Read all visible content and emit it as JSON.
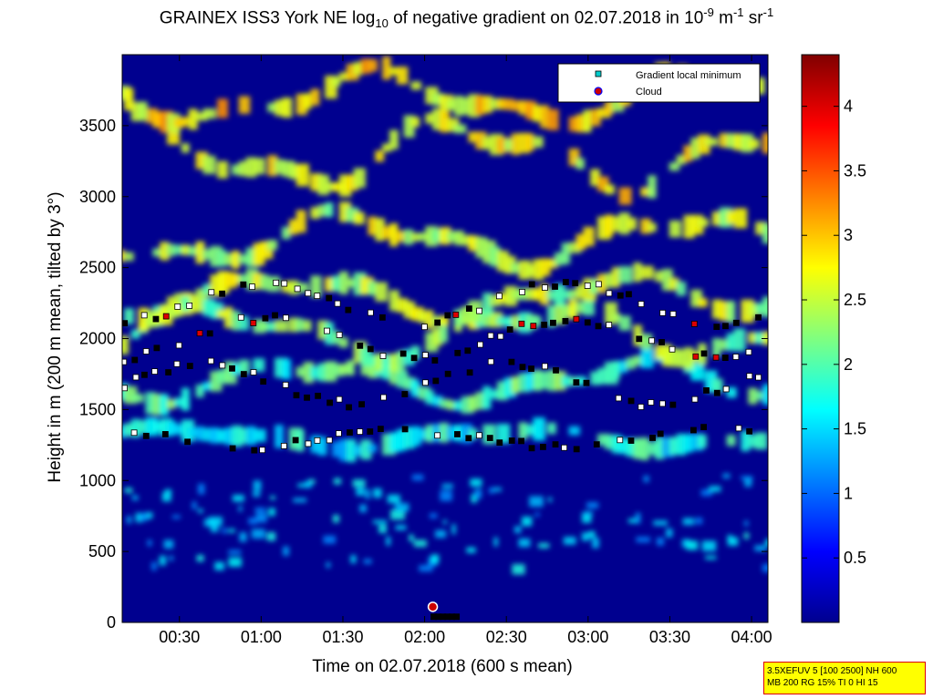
{
  "title_parts": {
    "a": "GRAINEX ISS3 York NE log",
    "a_sub": "10",
    "b": " of negative gradient on 02.07.2018 in 10",
    "b_sup": "-9",
    "c": " m",
    "c_sup": "-1",
    "d": " sr",
    "d_sup": "-1"
  },
  "chart_data": {
    "type": "heatmap",
    "title": "GRAINEX ISS3 York NE log10 of negative gradient on 02.07.2018 in 10^-9 m^-1 sr^-1",
    "xlabel": "Time on 02.07.2018 (600 s mean)",
    "ylabel": "Height in m (200 m mean, tilted by 3°)",
    "x_range_hours": [
      0.15,
      4.1
    ],
    "y_range": [
      0,
      4000
    ],
    "x_ticks": [
      "00:30",
      "01:00",
      "01:30",
      "02:00",
      "02:30",
      "03:00",
      "03:30",
      "04:00"
    ],
    "x_tick_hours": [
      0.5,
      1.0,
      1.5,
      2.0,
      2.5,
      3.0,
      3.5,
      4.0
    ],
    "y_ticks": [
      0,
      500,
      1000,
      1500,
      2000,
      2500,
      3000,
      3500
    ],
    "colorbar": {
      "range": [
        0,
        4.4
      ],
      "ticks": [
        "0.5",
        "1",
        "1.5",
        "2",
        "2.5",
        "3",
        "3.5",
        "4"
      ],
      "tick_values": [
        0.5,
        1,
        1.5,
        2,
        2.5,
        3,
        3.5,
        4
      ]
    },
    "legend": {
      "position": "top-right",
      "entries": [
        "Gradient local minimum",
        "Cloud"
      ]
    },
    "layers_m": [
      {
        "base": 1300,
        "amp": 60,
        "value": 1.6
      },
      {
        "base": 1700,
        "amp": 120,
        "value": 1.9
      },
      {
        "base": 2050,
        "amp": 150,
        "value": 2.2
      },
      {
        "base": 2300,
        "amp": 120,
        "value": 2.3
      },
      {
        "base": 2700,
        "amp": 150,
        "value": 2.4
      },
      {
        "base": 3300,
        "amp": 200,
        "value": 2.6
      },
      {
        "base": 3700,
        "amp": 150,
        "value": 2.7
      }
    ],
    "cloud_points": [
      {
        "time_h": 2.05,
        "height": 110
      }
    ]
  },
  "footer": {
    "line1": "3.5XEFUV 5 [100 2500] NH 600",
    "line2": "MB 200 RG 15% TI 0 HI 15"
  }
}
